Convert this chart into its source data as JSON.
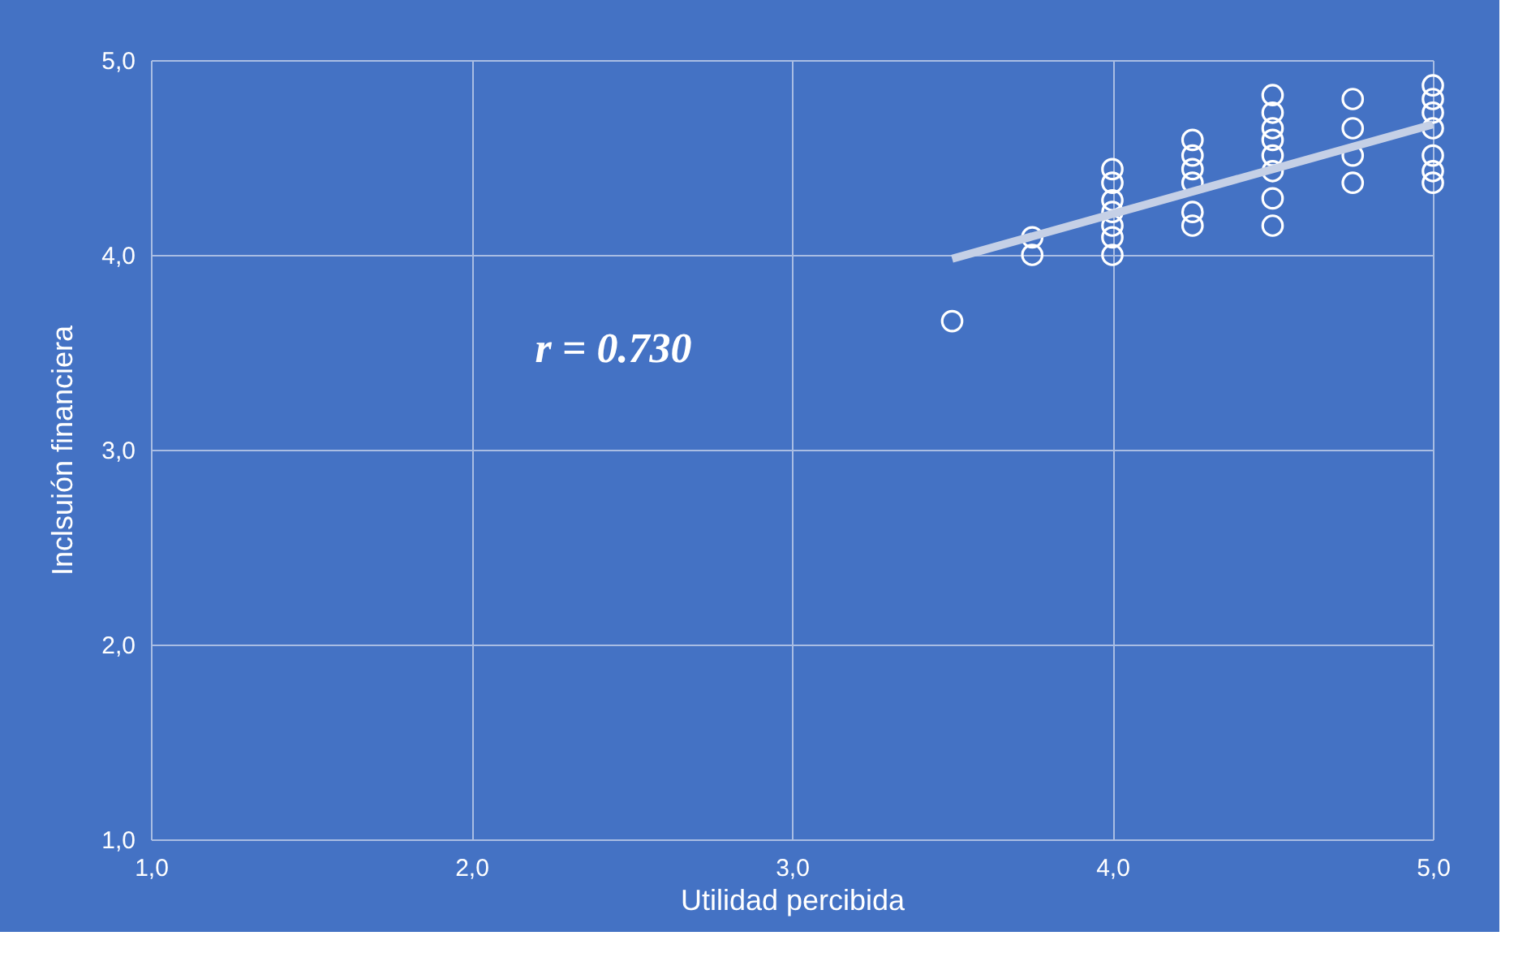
{
  "chart_data": {
    "type": "scatter",
    "xlabel": "Utilidad percibida",
    "ylabel": "Inclsuión financiera",
    "annotations": [
      "r = 0.730"
    ],
    "xlim": [
      1,
      5
    ],
    "ylim": [
      1,
      5
    ],
    "xticks": [
      {
        "value": 1,
        "label": "1,0"
      },
      {
        "value": 2,
        "label": "2,0"
      },
      {
        "value": 3,
        "label": "3,0"
      },
      {
        "value": 4,
        "label": "4,0"
      },
      {
        "value": 5,
        "label": "5,0"
      }
    ],
    "yticks": [
      {
        "value": 1,
        "label": "1,0"
      },
      {
        "value": 2,
        "label": "2,0"
      },
      {
        "value": 3,
        "label": "3,0"
      },
      {
        "value": 4,
        "label": "4,0"
      },
      {
        "value": 5,
        "label": "5,0"
      }
    ],
    "grid": true,
    "series": [
      {
        "type": "scatter",
        "marker": "circle",
        "color": "#ffffff",
        "x": [
          3.5,
          3.75,
          3.75,
          4,
          4,
          4,
          4,
          4,
          4,
          4,
          4.25,
          4.25,
          4.25,
          4.25,
          4.25,
          4.25,
          4.5,
          4.5,
          4.5,
          4.5,
          4.5,
          4.5,
          4.5,
          4.5,
          4.75,
          4.75,
          4.75,
          4.75,
          5,
          5,
          5,
          5,
          5,
          5,
          5
        ],
        "values": [
          3.66,
          4.09,
          4.0,
          4.44,
          4.37,
          4.28,
          4.22,
          4.15,
          4.09,
          4.0,
          4.59,
          4.51,
          4.44,
          4.37,
          4.22,
          4.15,
          4.82,
          4.73,
          4.65,
          4.59,
          4.51,
          4.43,
          4.29,
          4.15,
          4.8,
          4.65,
          4.51,
          4.37,
          4.87,
          4.8,
          4.73,
          4.65,
          4.51,
          4.43,
          4.37
        ]
      },
      {
        "type": "line",
        "marker": "none",
        "color": "#c5d0e6",
        "x": [
          3.5,
          5
        ],
        "values": [
          3.98,
          4.67
        ]
      }
    ]
  }
}
